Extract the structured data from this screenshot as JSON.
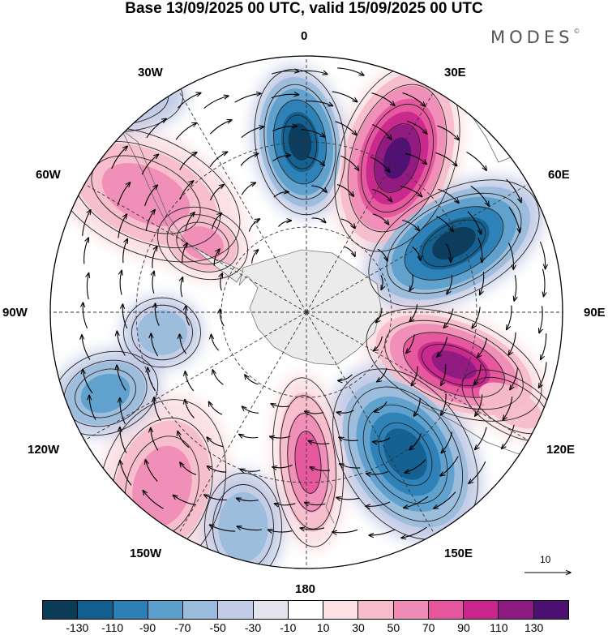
{
  "title": "Base 13/09/2025 00 UTC, valid 15/09/2025 00 UTC",
  "brand": "MODES",
  "brand_mark": "©",
  "longitude_labels": {
    "lon_0": "0",
    "lon_30e": "30E",
    "lon_60e": "60E",
    "lon_90e": "90E",
    "lon_120e": "120E",
    "lon_150e": "150E",
    "lon_180": "180",
    "lon_150w": "150W",
    "lon_120w": "120W",
    "lon_90w": "90W",
    "lon_60w": "60W",
    "lon_30w": "30W"
  },
  "reference_vector": "10",
  "colorbar": {
    "colors": [
      "#0c3b58",
      "#125e8e",
      "#2a7fb5",
      "#5b9fcc",
      "#9abcdc",
      "#c3cce6",
      "#e4e4f0",
      "#ffffff",
      "#fbe0e4",
      "#f6bccb",
      "#f08bb5",
      "#e6559d",
      "#c8268c",
      "#8c1a80",
      "#4b1072"
    ],
    "ticks": [
      "-130",
      "-110",
      "-90",
      "-70",
      "-50",
      "-30",
      "-10",
      "10",
      "30",
      "50",
      "70",
      "90",
      "110",
      "130"
    ]
  }
}
